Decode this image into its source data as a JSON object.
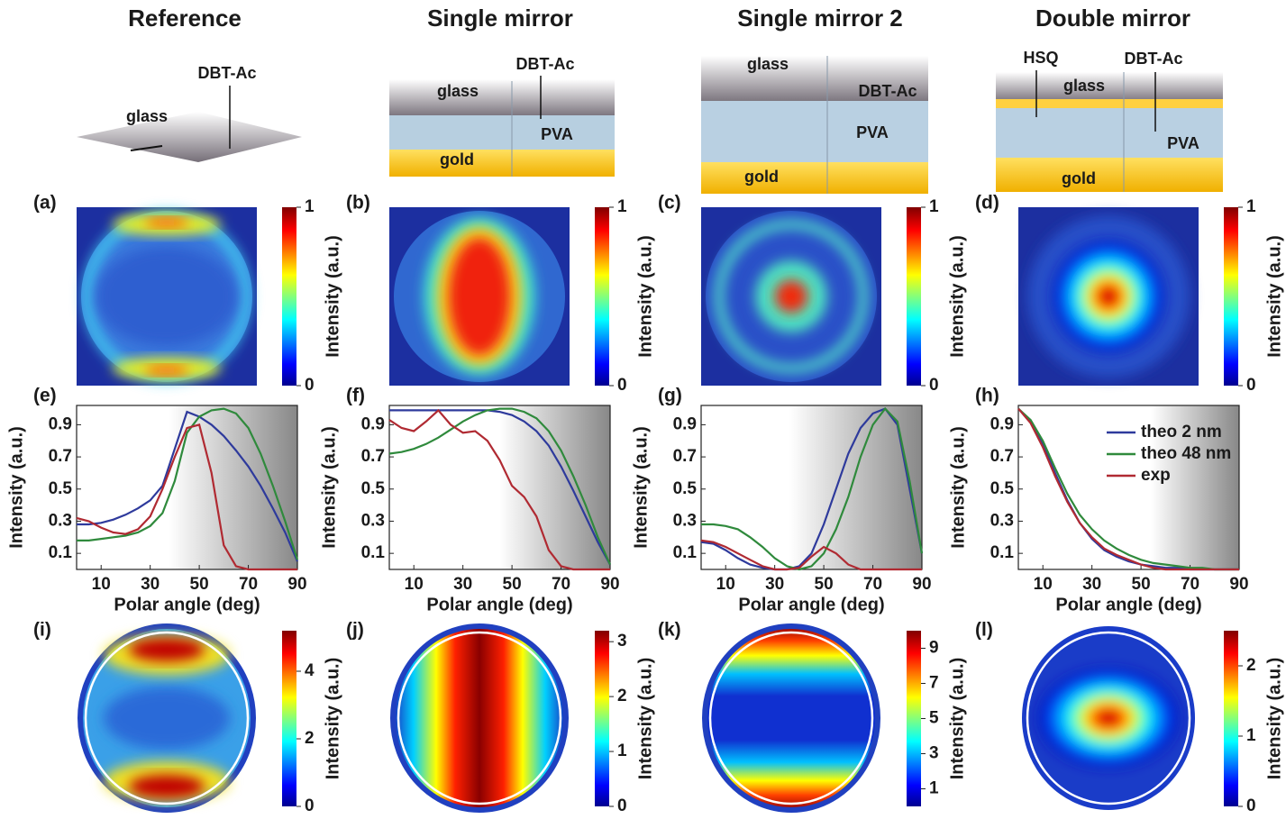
{
  "columns": [
    {
      "title": "Reference",
      "diagram": [
        "glass",
        "DBT-Ac"
      ]
    },
    {
      "title": "Single mirror",
      "diagram": [
        "DBT-Ac",
        "glass",
        "PVA",
        "gold"
      ]
    },
    {
      "title": "Single mirror 2",
      "diagram": [
        "glass",
        "DBT-Ac",
        "PVA",
        "gold"
      ]
    },
    {
      "title": "Double mirror",
      "diagram": [
        "HSQ",
        "DBT-Ac",
        "glass",
        "PVA",
        "gold"
      ]
    }
  ],
  "measured": [
    {
      "panel": "(a)",
      "colorbar": {
        "label": "Intensity (a.u.)",
        "lim": [
          0,
          1
        ],
        "ticks": [
          0,
          1
        ]
      }
    },
    {
      "panel": "(b)",
      "colorbar": {
        "label": "Intensity (a.u.)",
        "lim": [
          0,
          1
        ],
        "ticks": [
          0,
          1
        ]
      }
    },
    {
      "panel": "(c)",
      "colorbar": {
        "label": "Intensity (a.u.)",
        "lim": [
          0,
          1
        ],
        "ticks": [
          0,
          1
        ]
      }
    },
    {
      "panel": "(d)",
      "colorbar": {
        "label": "Intensity (a.u.)",
        "lim": [
          0,
          1
        ],
        "ticks": [
          0,
          1
        ]
      }
    }
  ],
  "chart_data": [
    {
      "type": "line",
      "panel": "(e)",
      "xlabel": "Polar angle (deg)",
      "ylabel": "Intensity (a.u.)",
      "x": [
        0,
        5,
        10,
        15,
        20,
        25,
        30,
        35,
        40,
        45,
        50,
        55,
        60,
        65,
        70,
        75,
        80,
        85,
        90
      ],
      "series": [
        {
          "color": "#2e3a9c",
          "values": [
            0.28,
            0.28,
            0.29,
            0.31,
            0.34,
            0.38,
            0.43,
            0.52,
            0.75,
            0.98,
            0.95,
            0.9,
            0.83,
            0.74,
            0.64,
            0.52,
            0.38,
            0.23,
            0.05
          ]
        },
        {
          "color": "#2f8a3c",
          "values": [
            0.18,
            0.18,
            0.19,
            0.2,
            0.21,
            0.23,
            0.27,
            0.35,
            0.55,
            0.85,
            0.95,
            0.99,
            1.0,
            0.97,
            0.88,
            0.72,
            0.52,
            0.3,
            0.06
          ]
        },
        {
          "color": "#b02a32",
          "values": [
            0.32,
            0.3,
            0.26,
            0.23,
            0.22,
            0.25,
            0.33,
            0.5,
            0.7,
            0.88,
            0.9,
            0.6,
            0.15,
            0.02,
            0,
            0,
            0,
            0,
            0
          ]
        }
      ],
      "xlim": [
        0,
        90
      ],
      "ylim": [
        0,
        1.02
      ],
      "xticks": [
        10,
        30,
        50,
        70,
        90
      ],
      "yticks": [
        0.1,
        0.3,
        0.5,
        0.7,
        0.9
      ]
    },
    {
      "type": "line",
      "panel": "(f)",
      "xlabel": "Polar angle (deg)",
      "ylabel": "Intensity (a.u.)",
      "x": [
        0,
        5,
        10,
        15,
        20,
        25,
        30,
        35,
        40,
        45,
        50,
        55,
        60,
        65,
        70,
        75,
        80,
        85,
        90
      ],
      "series": [
        {
          "color": "#2e3a9c",
          "values": [
            0.99,
            0.99,
            0.99,
            0.99,
            0.99,
            0.99,
            0.99,
            0.99,
            0.99,
            0.98,
            0.96,
            0.92,
            0.86,
            0.77,
            0.64,
            0.49,
            0.33,
            0.17,
            0.03
          ]
        },
        {
          "color": "#2f8a3c",
          "values": [
            0.72,
            0.73,
            0.75,
            0.78,
            0.82,
            0.87,
            0.92,
            0.96,
            0.99,
            1.0,
            1.0,
            0.98,
            0.94,
            0.86,
            0.74,
            0.58,
            0.4,
            0.2,
            0.03
          ]
        },
        {
          "color": "#b02a32",
          "values": [
            0.93,
            0.88,
            0.86,
            0.92,
            0.99,
            0.9,
            0.85,
            0.86,
            0.8,
            0.68,
            0.52,
            0.45,
            0.33,
            0.12,
            0.02,
            0,
            0,
            0,
            0
          ]
        }
      ],
      "xlim": [
        0,
        90
      ],
      "ylim": [
        0,
        1.02
      ],
      "xticks": [
        10,
        30,
        50,
        70,
        90
      ],
      "yticks": [
        0.1,
        0.3,
        0.5,
        0.7,
        0.9
      ]
    },
    {
      "type": "line",
      "panel": "(g)",
      "xlabel": "Polar angle (deg)",
      "ylabel": "Intensity (a.u.)",
      "x": [
        0,
        5,
        10,
        15,
        20,
        25,
        30,
        35,
        40,
        45,
        50,
        55,
        60,
        65,
        70,
        75,
        80,
        85,
        90
      ],
      "series": [
        {
          "color": "#2e3a9c",
          "values": [
            0.17,
            0.16,
            0.12,
            0.07,
            0.03,
            0.01,
            0,
            0,
            0.02,
            0.1,
            0.28,
            0.5,
            0.72,
            0.88,
            0.97,
            1.0,
            0.9,
            0.5,
            0.1
          ]
        },
        {
          "color": "#2f8a3c",
          "values": [
            0.28,
            0.28,
            0.27,
            0.25,
            0.2,
            0.14,
            0.07,
            0.02,
            0,
            0.02,
            0.1,
            0.25,
            0.45,
            0.7,
            0.9,
            1.0,
            0.92,
            0.55,
            0.1
          ]
        },
        {
          "color": "#b02a32",
          "values": [
            0.18,
            0.17,
            0.14,
            0.1,
            0.06,
            0.02,
            0,
            0,
            0.01,
            0.08,
            0.14,
            0.1,
            0.03,
            0,
            0,
            0,
            0,
            0,
            0
          ]
        }
      ],
      "xlim": [
        0,
        90
      ],
      "ylim": [
        0,
        1.02
      ],
      "xticks": [
        10,
        30,
        50,
        70,
        90
      ],
      "yticks": [
        0.1,
        0.3,
        0.5,
        0.7,
        0.9
      ]
    },
    {
      "type": "line",
      "panel": "(h)",
      "xlabel": "Polar angle (deg)",
      "ylabel": "Intensity (a.u.)",
      "x": [
        0,
        5,
        10,
        15,
        20,
        25,
        30,
        35,
        40,
        45,
        50,
        55,
        60,
        65,
        70,
        75,
        80,
        85,
        90
      ],
      "series": [
        {
          "name": "theo 2 nm",
          "color": "#2e3a9c",
          "values": [
            1.0,
            0.92,
            0.78,
            0.6,
            0.43,
            0.29,
            0.19,
            0.12,
            0.08,
            0.05,
            0.03,
            0.02,
            0.01,
            0.01,
            0,
            0,
            0,
            0,
            0
          ]
        },
        {
          "name": "theo 48 nm",
          "color": "#2f8a3c",
          "values": [
            1.0,
            0.93,
            0.8,
            0.63,
            0.47,
            0.34,
            0.25,
            0.18,
            0.13,
            0.09,
            0.06,
            0.04,
            0.03,
            0.02,
            0.01,
            0.01,
            0,
            0,
            0
          ]
        },
        {
          "name": "exp",
          "color": "#b02a32",
          "values": [
            1.0,
            0.91,
            0.76,
            0.58,
            0.42,
            0.29,
            0.2,
            0.13,
            0.09,
            0.06,
            0.03,
            0.01,
            0,
            0,
            0,
            0,
            0,
            0,
            0
          ]
        }
      ],
      "xlim": [
        0,
        90
      ],
      "ylim": [
        0,
        1.02
      ],
      "xticks": [
        10,
        30,
        50,
        70,
        90
      ],
      "yticks": [
        0.1,
        0.3,
        0.5,
        0.7,
        0.9
      ],
      "legend": "upper right"
    }
  ],
  "simulated": [
    {
      "panel": "(i)",
      "colorbar": {
        "label": "Intensity (a.u.)",
        "lim": [
          0,
          5.2
        ],
        "ticks": [
          0,
          2,
          4
        ]
      }
    },
    {
      "panel": "(j)",
      "colorbar": {
        "label": "Intensity (a.u.)",
        "lim": [
          0,
          3.2
        ],
        "ticks": [
          0,
          1,
          2,
          3
        ]
      }
    },
    {
      "panel": "(k)",
      "colorbar": {
        "label": "Intensity (a.u.)",
        "lim": [
          0,
          10
        ],
        "ticks": [
          1,
          3,
          5,
          7,
          9
        ]
      }
    },
    {
      "panel": "(l)",
      "colorbar": {
        "label": "Intensity (a.u.)",
        "lim": [
          0,
          2.5
        ],
        "ticks": [
          0,
          1,
          2
        ]
      }
    }
  ]
}
